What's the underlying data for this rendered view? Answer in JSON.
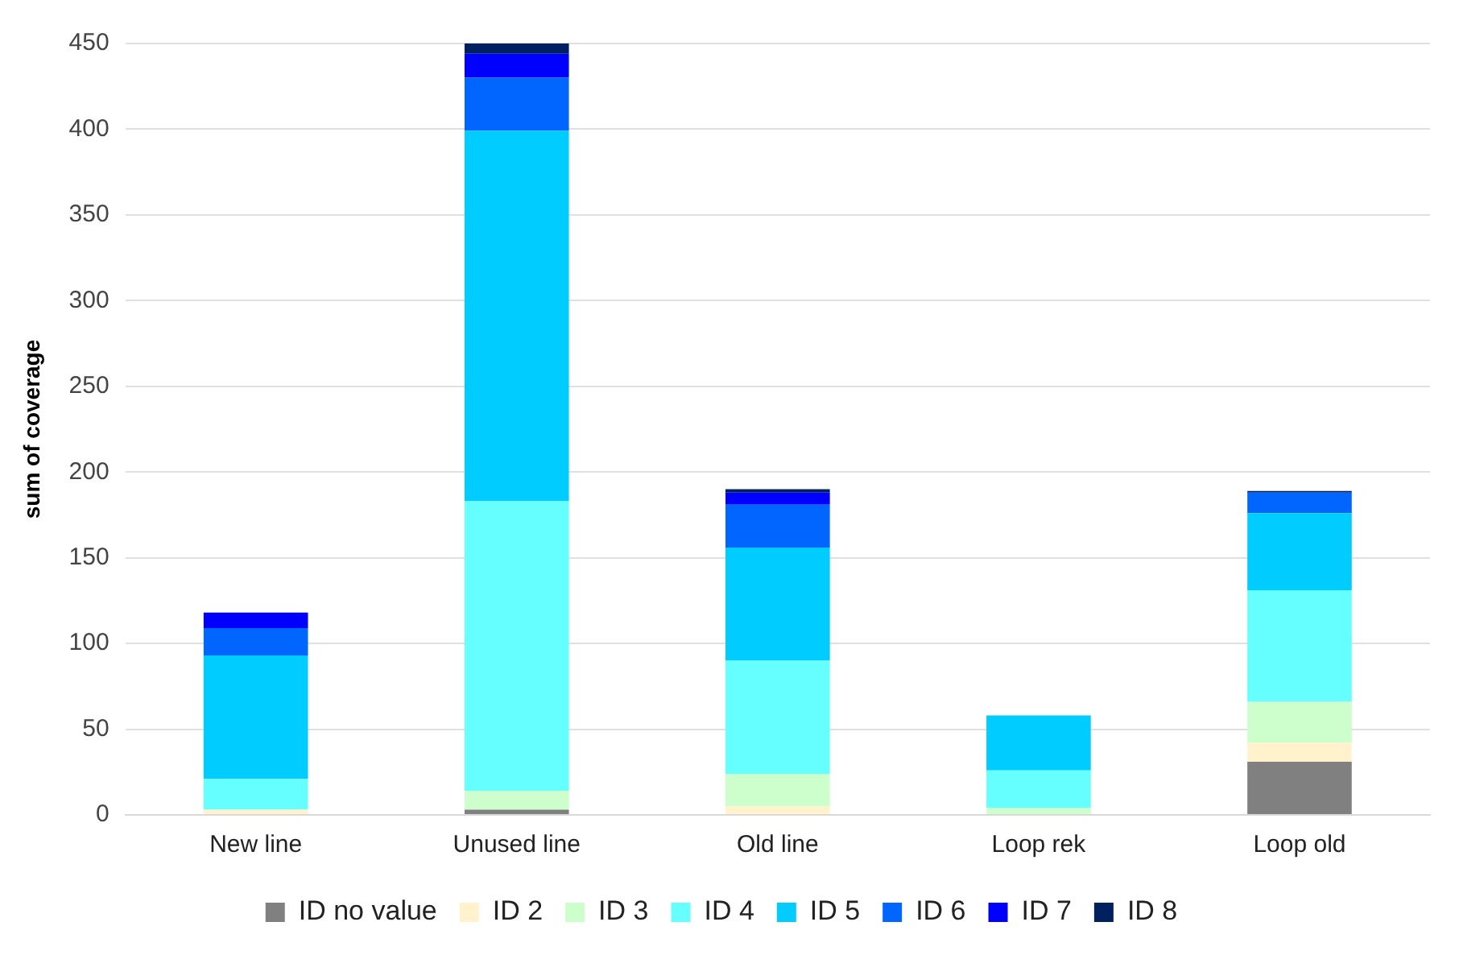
{
  "chart_data": {
    "type": "bar",
    "stacked": true,
    "ylabel": "sum of coverage",
    "categories": [
      "New line",
      "Unused line",
      "Old line",
      "Loop rek",
      "Loop old"
    ],
    "series": [
      {
        "name": "ID no value",
        "color": "#808080",
        "values": [
          0,
          3,
          0,
          0,
          31
        ]
      },
      {
        "name": "ID 2",
        "color": "#fff2cc",
        "values": [
          3,
          0,
          5,
          0,
          11
        ]
      },
      {
        "name": "ID 3",
        "color": "#ccffcc",
        "values": [
          0,
          11,
          19,
          4,
          24
        ]
      },
      {
        "name": "ID 4",
        "color": "#66ffff",
        "values": [
          18,
          169,
          66,
          22,
          65
        ]
      },
      {
        "name": "ID 5",
        "color": "#00ccff",
        "values": [
          72,
          216,
          66,
          32,
          45
        ]
      },
      {
        "name": "ID 6",
        "color": "#0066ff",
        "values": [
          16,
          31,
          25,
          0,
          12
        ]
      },
      {
        "name": "ID 7",
        "color": "#0000ff",
        "values": [
          9,
          14,
          7,
          0,
          0
        ]
      },
      {
        "name": "ID 8",
        "color": "#002060",
        "values": [
          0,
          6,
          2,
          0,
          1
        ]
      }
    ],
    "ylim": [
      0,
      450
    ],
    "yticks": [
      0,
      50,
      100,
      150,
      200,
      250,
      300,
      350,
      400,
      450
    ],
    "grid": "y",
    "legend": "bottom"
  }
}
